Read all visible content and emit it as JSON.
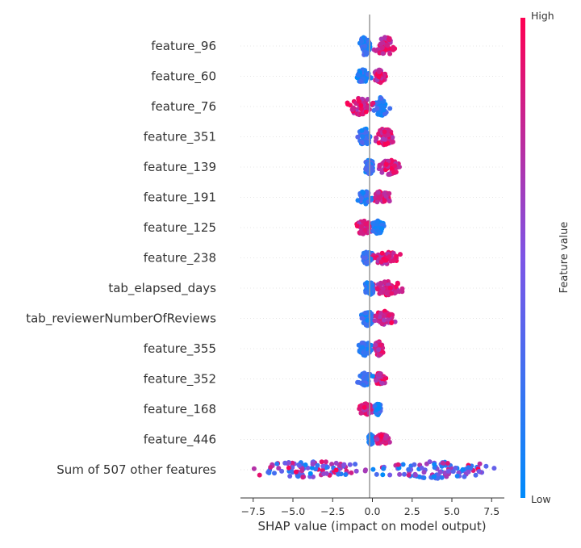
{
  "chart_data": {
    "type": "scatter",
    "subtype": "shap-beeswarm",
    "xlabel": "SHAP value (impact on model output)",
    "xlim": [
      -8.3,
      8.3
    ],
    "x_ticks": [
      -7.5,
      -5.0,
      -2.5,
      0.0,
      2.5,
      5.0,
      7.5
    ],
    "x_tick_labels": [
      "−7.5",
      "−5.0",
      "−2.5",
      "0.0",
      "2.5",
      "5.0",
      "7.5"
    ],
    "grid": false,
    "colorbar": {
      "title": "Feature value",
      "high_label": "High",
      "low_label": "Low",
      "low_color": "#008bfb",
      "high_color": "#ff0052"
    },
    "features": [
      {
        "name": "feature_96",
        "neg_center": -0.45,
        "neg_spread": 0.45,
        "pos_center": 0.8,
        "pos_spread": 0.65,
        "neg_color": "low",
        "pos_color": "high",
        "width": 1.0
      },
      {
        "name": "feature_60",
        "neg_center": -0.6,
        "neg_spread": 0.45,
        "pos_center": 0.45,
        "pos_spread": 0.35,
        "neg_color": "low",
        "pos_color": "high",
        "width": 0.7
      },
      {
        "name": "feature_76",
        "neg_center": -0.7,
        "neg_spread": 0.75,
        "pos_center": 0.55,
        "pos_spread": 0.45,
        "neg_color": "high",
        "pos_color": "low",
        "width": 1.0
      },
      {
        "name": "feature_351",
        "neg_center": -0.5,
        "neg_spread": 0.45,
        "pos_center": 0.75,
        "pos_spread": 0.55,
        "neg_color": "low",
        "pos_color": "high",
        "width": 0.9
      },
      {
        "name": "feature_139",
        "neg_center": -0.2,
        "neg_spread": 0.3,
        "pos_center": 1.1,
        "pos_spread": 0.8,
        "neg_color": "low",
        "pos_color": "high",
        "width": 0.8
      },
      {
        "name": "feature_191",
        "neg_center": -0.45,
        "neg_spread": 0.4,
        "pos_center": 0.6,
        "pos_spread": 0.45,
        "neg_color": "low",
        "pos_color": "high",
        "width": 0.7
      },
      {
        "name": "feature_125",
        "neg_center": -0.55,
        "neg_spread": 0.5,
        "pos_center": 0.35,
        "pos_spread": 0.35,
        "neg_color": "high",
        "pos_color": "low",
        "width": 0.75
      },
      {
        "name": "feature_238",
        "neg_center": -0.3,
        "neg_spread": 0.4,
        "pos_center": 0.8,
        "pos_spread": 0.85,
        "neg_color": "low",
        "pos_color": "high",
        "width": 0.7
      },
      {
        "name": "tab_elapsed_days",
        "neg_center": -0.2,
        "neg_spread": 0.3,
        "pos_center": 1.0,
        "pos_spread": 1.0,
        "neg_color": "low",
        "pos_color": "high",
        "width": 0.75
      },
      {
        "name": "tab_reviewerNumberOfReviews",
        "neg_center": -0.3,
        "neg_spread": 0.35,
        "pos_center": 0.75,
        "pos_spread": 0.6,
        "neg_color": "low",
        "pos_color": "high",
        "width": 0.8
      },
      {
        "name": "feature_355",
        "neg_center": -0.45,
        "neg_spread": 0.4,
        "pos_center": 0.4,
        "pos_spread": 0.3,
        "neg_color": "low",
        "pos_color": "high",
        "width": 0.75
      },
      {
        "name": "feature_352",
        "neg_center": -0.45,
        "neg_spread": 0.4,
        "pos_center": 0.45,
        "pos_spread": 0.35,
        "neg_color": "low",
        "pos_color": "high",
        "width": 0.7
      },
      {
        "name": "feature_168",
        "neg_center": -0.4,
        "neg_spread": 0.45,
        "pos_center": 0.35,
        "pos_spread": 0.25,
        "neg_color": "high",
        "pos_color": "low",
        "width": 0.6
      },
      {
        "name": "feature_446",
        "neg_center": -0.1,
        "neg_spread": 0.15,
        "pos_center": 0.6,
        "pos_spread": 0.45,
        "neg_color": "low",
        "pos_color": "high",
        "width": 0.55
      },
      {
        "name": "Sum of 507 other features",
        "neg_center": -3.8,
        "neg_spread": 3.6,
        "pos_center": 4.0,
        "pos_spread": 3.6,
        "neg_color": "mixed",
        "pos_color": "mixed",
        "width": 1.0
      }
    ]
  }
}
